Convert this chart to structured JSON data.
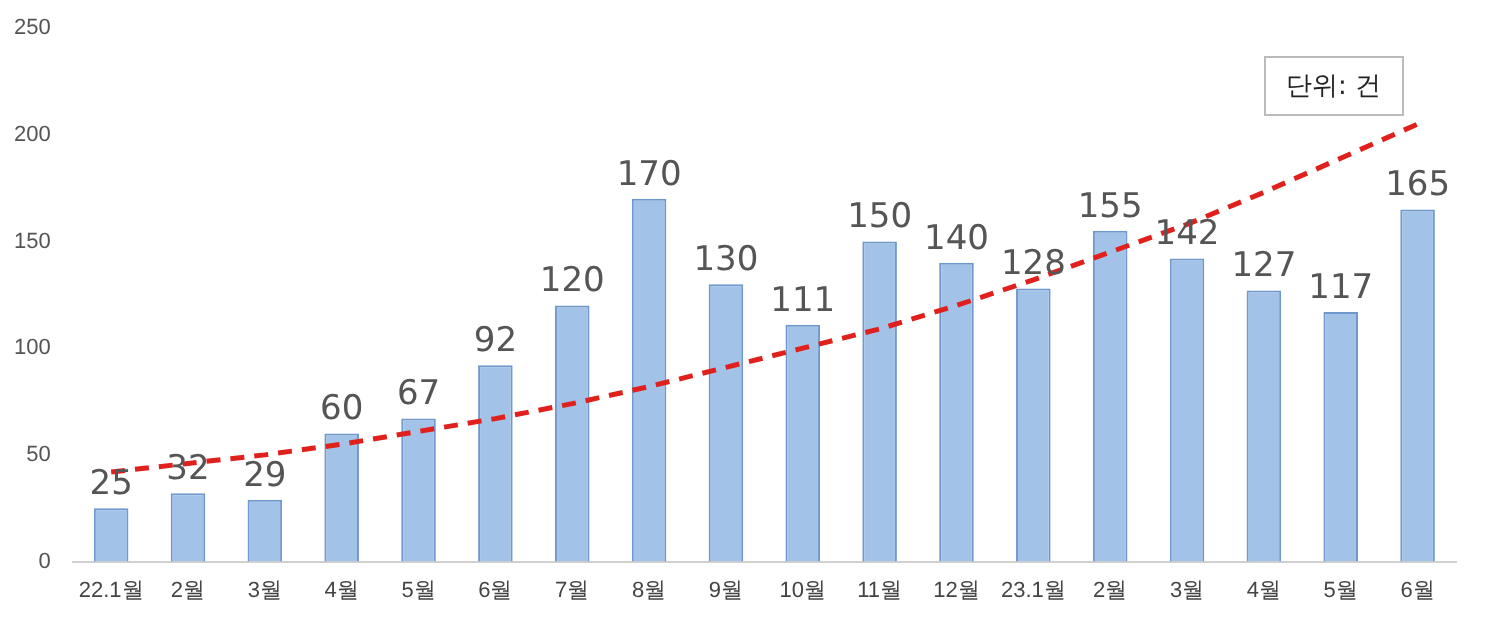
{
  "chart_data": {
    "type": "bar",
    "categories": [
      "22.1월",
      "2월",
      "3월",
      "4월",
      "5월",
      "6월",
      "7월",
      "8월",
      "9월",
      "10월",
      "11월",
      "12월",
      "23.1월",
      "2월",
      "3월",
      "4월",
      "5월",
      "6월"
    ],
    "series": [
      {
        "color": "#a3c2e8",
        "values": [
          25,
          32,
          29,
          60,
          67,
          92,
          120,
          170,
          130,
          111,
          150,
          140,
          128,
          155,
          142,
          127,
          117,
          165
        ],
        "value_labels": [
          "25",
          "32",
          "29",
          "60",
          "67",
          "92",
          "120",
          "170",
          "130",
          "111",
          "150",
          "140",
          "128",
          "155",
          "142",
          "127",
          "117",
          "165"
        ]
      },
      {
        "type": "line",
        "color": "#e0201c",
        "line_style": "dashed",
        "marker": "none",
        "values": [
          42,
          46,
          50,
          55,
          61,
          67,
          74,
          82,
          91,
          100,
          109,
          120,
          132,
          145,
          158,
          173,
          189,
          205
        ]
      }
    ],
    "ylim": [
      0,
      250
    ],
    "yticks": [
      0,
      50,
      100,
      150,
      200,
      250
    ],
    "grid": false,
    "legend": false,
    "annotations": [
      "단위: 건"
    ]
  }
}
